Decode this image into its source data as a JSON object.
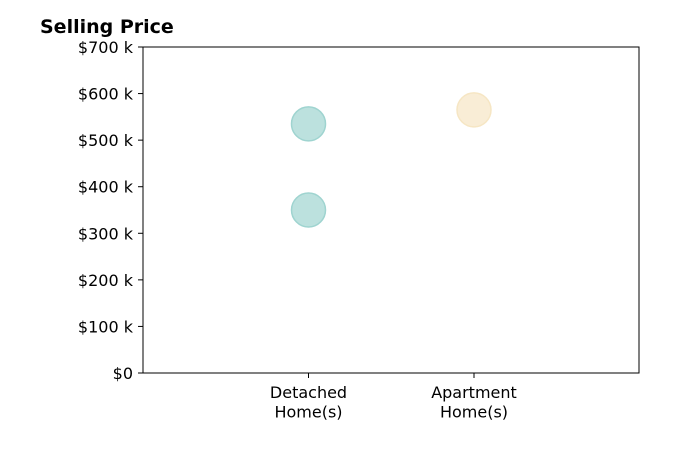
{
  "chart_data": {
    "type": "scatter",
    "title": "Selling Price",
    "xlabel": "",
    "ylabel": "",
    "categories": [
      [
        "Detached",
        "Home(s)"
      ],
      [
        "Apartment",
        "Home(s)"
      ]
    ],
    "y_ticks": [
      "$0",
      "$100 k",
      "$200 k",
      "$300 k",
      "$400 k",
      "$500 k",
      "$600 k",
      "$700 k"
    ],
    "ylim": [
      0,
      700000
    ],
    "series": [
      {
        "category_index": 0,
        "values": [
          535000,
          350000
        ],
        "color": "#9fd4d0"
      },
      {
        "category_index": 1,
        "values": [
          565000
        ],
        "color": "#f6e6c4"
      }
    ],
    "grid": false,
    "legend": "none"
  }
}
